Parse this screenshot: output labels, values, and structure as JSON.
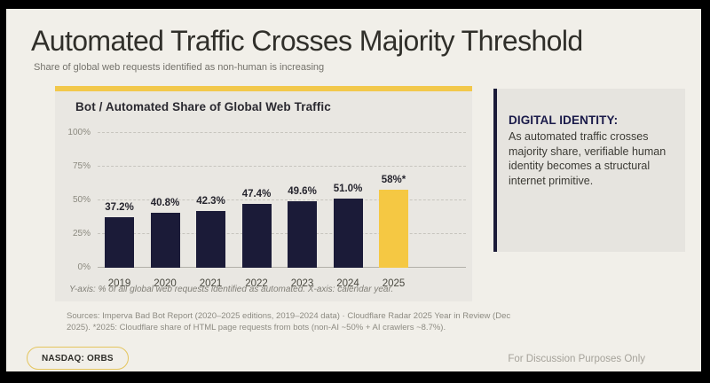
{
  "frame": {
    "letterbox_color": "#000000",
    "slide_bg": "#f1efe9"
  },
  "header": {
    "title": "Automated Traffic Crosses Majority Threshold",
    "subtitle": "Share of global web requests identified as non-human is increasing"
  },
  "chart_card": {
    "title": "Bot / Automated Share of Global Web Traffic",
    "axis_note": "Y-axis: % of all global web requests identified as automated.  X-axis: calendar year.",
    "accent_color": "#f2c84b"
  },
  "chart_data": {
    "type": "bar",
    "title": "Bot / Automated Share of Global Web Traffic",
    "categories": [
      "2019",
      "2020",
      "2021",
      "2022",
      "2023",
      "2024",
      "2025"
    ],
    "values": [
      37.2,
      40.8,
      42.3,
      47.4,
      49.6,
      51.0,
      58
    ],
    "value_labels": [
      "37.2%",
      "40.8%",
      "42.3%",
      "47.4%",
      "49.6%",
      "51.0%",
      "58%*"
    ],
    "ylabel": "% of all global web requests identified as automated",
    "xlabel": "calendar year",
    "ylim": [
      0,
      100
    ],
    "yticks": [
      {
        "label": "0%",
        "value": 0
      },
      {
        "label": "25%",
        "value": 25
      },
      {
        "label": "50%",
        "value": 50
      },
      {
        "label": "75%",
        "value": 75
      },
      {
        "label": "100%",
        "value": 100
      }
    ],
    "grid": "horizontal-dashed",
    "legend": "none",
    "bar_color": "#1b1b38",
    "highlight_index": 6,
    "highlight_color": "#f5c843"
  },
  "callout": {
    "title": "DIGITAL IDENTITY:",
    "body": "As automated traffic crosses majority share, verifiable human identity becomes a structural internet primitive."
  },
  "footnotes": {
    "sources_line1": "Sources: Imperva Bad Bot Report (2020–2025 editions, 2019–2024 data) · Cloudflare Radar 2025 Year in Review (Dec",
    "sources_line2": "2025). *2025: Cloudflare share of HTML page requests from bots (non-AI ~50% + AI crawlers ~8.7%)."
  },
  "footer": {
    "ticker_badge": "NASDAQ: ORBS",
    "disclaimer": "For Discussion Purposes Only"
  }
}
